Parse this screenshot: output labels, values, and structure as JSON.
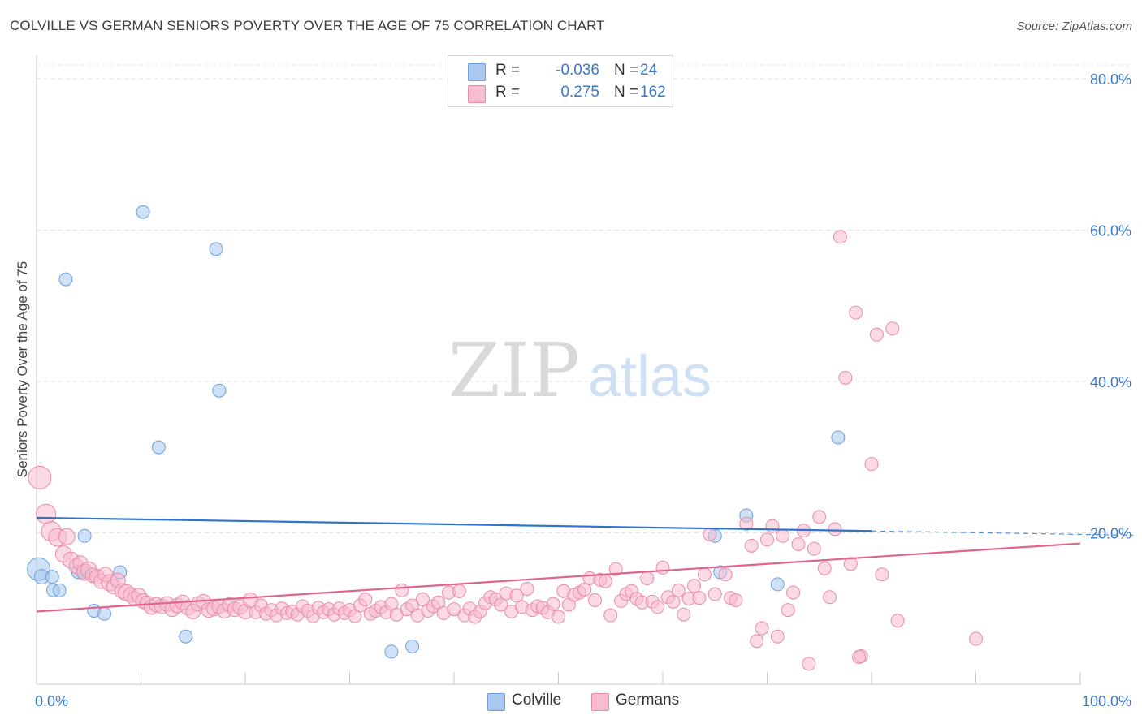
{
  "title": "COLVILLE VS GERMAN SENIORS POVERTY OVER THE AGE OF 75 CORRELATION CHART",
  "source": "Source: ZipAtlas.com",
  "watermark": {
    "zip": "ZIP",
    "atlas": "atlas"
  },
  "legend": {
    "rows": [
      {
        "r_label": "R =",
        "r_value": "-0.036",
        "n_label": "N =",
        "n_value": "24",
        "color": "#a8c8ef",
        "border": "#6d9fdc"
      },
      {
        "r_label": "R =",
        "r_value": "0.275",
        "n_label": "N =",
        "n_value": "162",
        "color": "#f7bccd",
        "border": "#e88aa6"
      }
    ]
  },
  "bottom_legend": [
    {
      "name": "Colville",
      "color": "#a8c8ef",
      "border": "#6d9fdc"
    },
    {
      "name": "Germans",
      "color": "#f7bccd",
      "border": "#e88aa6"
    }
  ],
  "chart_data": {
    "type": "scatter",
    "title": "COLVILLE VS GERMAN SENIORS POVERTY OVER THE AGE OF 75 CORRELATION CHART",
    "xlabel": "",
    "ylabel": "Seniors Poverty Over the Age of 75",
    "xlim": [
      0,
      100
    ],
    "ylim": [
      0,
      80
    ],
    "x_tick_labels": [
      "0.0%",
      "100.0%"
    ],
    "y_ticks": [
      20,
      40,
      60,
      80
    ],
    "y_tick_labels": [
      "20.0%",
      "40.0%",
      "60.0%",
      "80.0%"
    ],
    "grid": "horizontal dashed",
    "legend_position": "top-center",
    "series": [
      {
        "name": "Colville",
        "color": "#6d9fdc",
        "fill": "#a8c8ef",
        "line_color": "#2f73cc",
        "trend": {
          "x1": 0,
          "y1": 22.0,
          "x2": 100,
          "y2": 19.8,
          "solid_until": 80
        },
        "points": [
          [
            0.2,
            15.2,
            14
          ],
          [
            0.5,
            14.2,
            9
          ],
          [
            1.5,
            14.2,
            8
          ],
          [
            1.6,
            12.4,
            8
          ],
          [
            2.2,
            12.4,
            8
          ],
          [
            2.8,
            53.5,
            8
          ],
          [
            4.0,
            14.8,
            8
          ],
          [
            4.5,
            14.8,
            8
          ],
          [
            4.6,
            19.6,
            8
          ],
          [
            5.5,
            9.7,
            8
          ],
          [
            6.5,
            9.3,
            8
          ],
          [
            8.0,
            14.8,
            8
          ],
          [
            10.2,
            62.4,
            8
          ],
          [
            11.7,
            31.3,
            8
          ],
          [
            14.3,
            6.3,
            8
          ],
          [
            17.2,
            57.5,
            8
          ],
          [
            17.5,
            38.8,
            8
          ],
          [
            34.0,
            4.3,
            8
          ],
          [
            36.0,
            5.0,
            8
          ],
          [
            65.0,
            19.6,
            8
          ],
          [
            65.5,
            14.8,
            8
          ],
          [
            68.0,
            22.3,
            8
          ],
          [
            71.0,
            13.2,
            8
          ],
          [
            76.8,
            32.6,
            8
          ]
        ]
      },
      {
        "name": "Germans",
        "color": "#e88aa6",
        "fill": "#f7bccd",
        "line_color": "#e0648c",
        "trend": {
          "x1": 0,
          "y1": 9.6,
          "x2": 100,
          "y2": 18.6
        },
        "points": [
          [
            0.3,
            27.3,
            14
          ],
          [
            0.9,
            22.5,
            12
          ],
          [
            1.4,
            20.2,
            12
          ],
          [
            2.0,
            19.4,
            11
          ],
          [
            2.6,
            17.2,
            10
          ],
          [
            2.9,
            19.5,
            10
          ],
          [
            3.3,
            16.4,
            10
          ],
          [
            3.8,
            15.6,
            9
          ],
          [
            4.2,
            16.0,
            9
          ],
          [
            4.6,
            14.8,
            10
          ],
          [
            5.0,
            15.1,
            10
          ],
          [
            5.4,
            14.4,
            9
          ],
          [
            5.8,
            14.2,
            9
          ],
          [
            6.2,
            13.6,
            9
          ],
          [
            6.6,
            14.5,
            9
          ],
          [
            7.0,
            13.4,
            10
          ],
          [
            7.4,
            12.9,
            9
          ],
          [
            7.8,
            13.7,
            9
          ],
          [
            8.2,
            12.3,
            9
          ],
          [
            8.6,
            12.1,
            10
          ],
          [
            9.0,
            11.8,
            9
          ],
          [
            9.4,
            11.3,
            9
          ],
          [
            9.8,
            11.7,
            9
          ],
          [
            10.2,
            11.0,
            9
          ],
          [
            10.6,
            10.7,
            9
          ],
          [
            11.0,
            10.2,
            9
          ],
          [
            11.5,
            10.5,
            9
          ],
          [
            12.0,
            10.3,
            9
          ],
          [
            12.5,
            10.6,
            9
          ],
          [
            13.0,
            9.9,
            9
          ],
          [
            13.5,
            10.4,
            9
          ],
          [
            14.0,
            10.8,
            9
          ],
          [
            14.5,
            10.1,
            9
          ],
          [
            15.0,
            9.6,
            9
          ],
          [
            15.5,
            10.6,
            9
          ],
          [
            16.0,
            10.9,
            9
          ],
          [
            16.5,
            9.8,
            9
          ],
          [
            17.0,
            10.0,
            9
          ],
          [
            17.5,
            10.3,
            9
          ],
          [
            18.0,
            9.7,
            9
          ],
          [
            18.5,
            10.5,
            9
          ],
          [
            19.0,
            9.9,
            9
          ],
          [
            19.5,
            10.2,
            9
          ],
          [
            20.0,
            9.6,
            9
          ],
          [
            20.5,
            11.1,
            9
          ],
          [
            21.0,
            9.5,
            8
          ],
          [
            21.5,
            10.4,
            8
          ],
          [
            22.0,
            9.3,
            8
          ],
          [
            22.5,
            9.8,
            8
          ],
          [
            23.0,
            9.1,
            8
          ],
          [
            23.5,
            10.0,
            8
          ],
          [
            24.0,
            9.4,
            8
          ],
          [
            24.5,
            9.6,
            8
          ],
          [
            25.0,
            9.2,
            8
          ],
          [
            25.5,
            10.3,
            8
          ],
          [
            26.0,
            9.7,
            8
          ],
          [
            26.5,
            9.0,
            8
          ],
          [
            27.0,
            10.1,
            8
          ],
          [
            27.5,
            9.5,
            8
          ],
          [
            28.0,
            9.9,
            8
          ],
          [
            28.5,
            9.2,
            8
          ],
          [
            29.0,
            10.0,
            8
          ],
          [
            29.5,
            9.4,
            8
          ],
          [
            30.0,
            9.8,
            8
          ],
          [
            30.5,
            9.0,
            8
          ],
          [
            31.0,
            10.4,
            8
          ],
          [
            31.5,
            11.2,
            8
          ],
          [
            32.0,
            9.3,
            8
          ],
          [
            32.5,
            9.7,
            8
          ],
          [
            33.0,
            10.2,
            8
          ],
          [
            33.5,
            9.5,
            8
          ],
          [
            34.0,
            10.6,
            8
          ],
          [
            34.5,
            9.2,
            8
          ],
          [
            35.0,
            12.4,
            8
          ],
          [
            35.5,
            9.9,
            8
          ],
          [
            36.0,
            10.4,
            8
          ],
          [
            36.5,
            9.1,
            8
          ],
          [
            37.0,
            11.2,
            8
          ],
          [
            37.5,
            9.7,
            8
          ],
          [
            38.0,
            10.3,
            8
          ],
          [
            38.5,
            10.8,
            8
          ],
          [
            39.0,
            9.4,
            8
          ],
          [
            39.5,
            12.1,
            8
          ],
          [
            40.0,
            9.9,
            8
          ],
          [
            40.5,
            12.3,
            8
          ],
          [
            41.0,
            9.1,
            8
          ],
          [
            41.5,
            10.0,
            8
          ],
          [
            42.0,
            8.9,
            8
          ],
          [
            42.5,
            9.6,
            8
          ],
          [
            43.0,
            10.7,
            8
          ],
          [
            43.5,
            11.5,
            8
          ],
          [
            44.0,
            11.2,
            8
          ],
          [
            44.5,
            10.5,
            8
          ],
          [
            45.0,
            12.0,
            8
          ],
          [
            45.5,
            9.6,
            8
          ],
          [
            46.0,
            11.7,
            8
          ],
          [
            46.5,
            10.2,
            8
          ],
          [
            47.0,
            12.6,
            8
          ],
          [
            47.5,
            9.8,
            8
          ],
          [
            48.0,
            10.3,
            8
          ],
          [
            48.5,
            10.1,
            8
          ],
          [
            49.0,
            9.5,
            8
          ],
          [
            49.5,
            10.6,
            8
          ],
          [
            50.0,
            8.9,
            8
          ],
          [
            50.5,
            12.3,
            8
          ],
          [
            51.0,
            10.5,
            8
          ],
          [
            51.5,
            11.8,
            8
          ],
          [
            52.0,
            12.1,
            8
          ],
          [
            52.5,
            12.5,
            8
          ],
          [
            53.0,
            14.0,
            8
          ],
          [
            53.5,
            11.1,
            8
          ],
          [
            54.0,
            13.8,
            8
          ],
          [
            54.5,
            13.6,
            8
          ],
          [
            55.0,
            9.1,
            8
          ],
          [
            55.5,
            15.2,
            8
          ],
          [
            56.0,
            11.0,
            8
          ],
          [
            56.5,
            11.9,
            8
          ],
          [
            57.0,
            12.3,
            8
          ],
          [
            57.5,
            11.3,
            8
          ],
          [
            58.0,
            10.8,
            8
          ],
          [
            58.5,
            14.0,
            8
          ],
          [
            59.0,
            10.9,
            8
          ],
          [
            59.5,
            10.2,
            8
          ],
          [
            60.0,
            15.4,
            8
          ],
          [
            60.5,
            11.5,
            8
          ],
          [
            61.0,
            10.9,
            8
          ],
          [
            61.5,
            12.4,
            8
          ],
          [
            62.0,
            9.2,
            8
          ],
          [
            62.5,
            11.3,
            8
          ],
          [
            63.0,
            13.0,
            8
          ],
          [
            63.5,
            11.4,
            8
          ],
          [
            64.0,
            14.5,
            8
          ],
          [
            64.5,
            19.8,
            8
          ],
          [
            65.0,
            11.9,
            8
          ],
          [
            66.0,
            14.5,
            8
          ],
          [
            66.5,
            11.4,
            8
          ],
          [
            67.0,
            11.1,
            8
          ],
          [
            68.0,
            21.2,
            8
          ],
          [
            68.5,
            18.3,
            8
          ],
          [
            69.0,
            5.7,
            8
          ],
          [
            69.5,
            7.4,
            8
          ],
          [
            70.0,
            19.1,
            8
          ],
          [
            70.5,
            20.9,
            8
          ],
          [
            71.0,
            6.3,
            8
          ],
          [
            71.5,
            19.6,
            8
          ],
          [
            72.0,
            9.8,
            8
          ],
          [
            72.5,
            12.1,
            8
          ],
          [
            73.0,
            18.5,
            8
          ],
          [
            73.5,
            20.3,
            8
          ],
          [
            74.0,
            2.7,
            8
          ],
          [
            74.5,
            17.9,
            8
          ],
          [
            75.0,
            22.1,
            8
          ],
          [
            75.5,
            15.3,
            8
          ],
          [
            76.0,
            11.5,
            8
          ],
          [
            76.5,
            20.5,
            8
          ],
          [
            77.0,
            59.1,
            8
          ],
          [
            77.5,
            40.5,
            8
          ],
          [
            78.0,
            15.9,
            8
          ],
          [
            78.5,
            49.1,
            8
          ],
          [
            79.0,
            3.7,
            8
          ],
          [
            80.0,
            29.1,
            8
          ],
          [
            80.5,
            46.2,
            8
          ],
          [
            81.0,
            14.5,
            8
          ],
          [
            82.0,
            47.0,
            8
          ],
          [
            82.5,
            8.4,
            8
          ],
          [
            90.0,
            6.0,
            8
          ],
          [
            78.8,
            3.6,
            8
          ]
        ]
      }
    ]
  }
}
